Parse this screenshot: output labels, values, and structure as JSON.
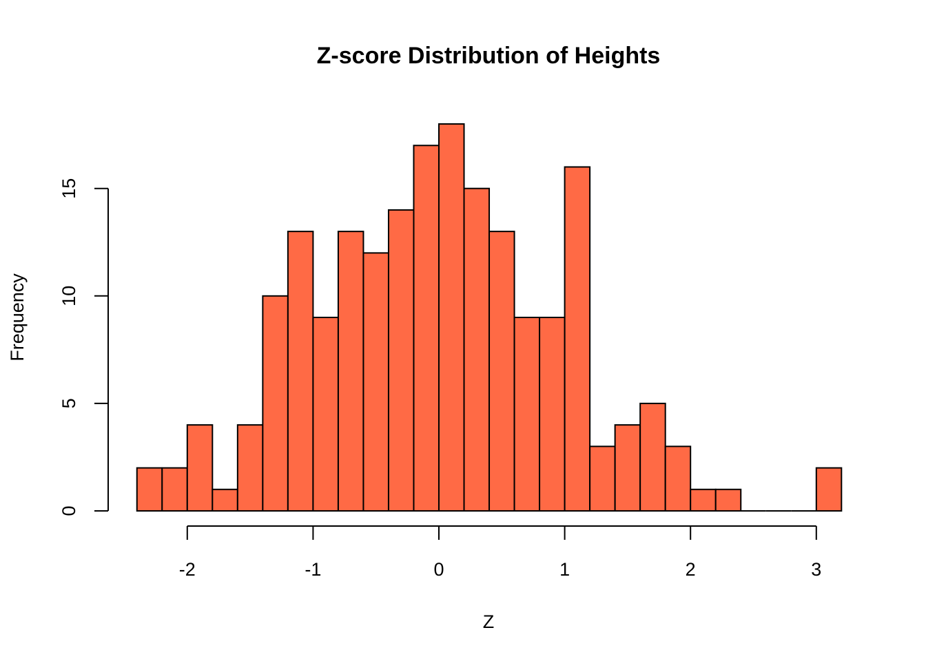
{
  "chart_data": {
    "type": "bar",
    "title": "Z-score Distribution of Heights",
    "xlabel": "Z",
    "ylabel": "Frequency",
    "bin_width": 0.2,
    "bin_start": -2.4,
    "bins": [
      {
        "x0": -2.4,
        "x1": -2.2,
        "count": 2
      },
      {
        "x0": -2.2,
        "x1": -2.0,
        "count": 2
      },
      {
        "x0": -2.0,
        "x1": -1.8,
        "count": 4
      },
      {
        "x0": -1.8,
        "x1": -1.6,
        "count": 1
      },
      {
        "x0": -1.6,
        "x1": -1.4,
        "count": 4
      },
      {
        "x0": -1.4,
        "x1": -1.2,
        "count": 10
      },
      {
        "x0": -1.2,
        "x1": -1.0,
        "count": 13
      },
      {
        "x0": -1.0,
        "x1": -0.8,
        "count": 9
      },
      {
        "x0": -0.8,
        "x1": -0.6,
        "count": 13
      },
      {
        "x0": -0.6,
        "x1": -0.4,
        "count": 12
      },
      {
        "x0": -0.4,
        "x1": -0.2,
        "count": 14
      },
      {
        "x0": -0.2,
        "x1": 0.0,
        "count": 17
      },
      {
        "x0": 0.0,
        "x1": 0.2,
        "count": 18
      },
      {
        "x0": 0.2,
        "x1": 0.4,
        "count": 15
      },
      {
        "x0": 0.4,
        "x1": 0.6,
        "count": 13
      },
      {
        "x0": 0.6,
        "x1": 0.8,
        "count": 9
      },
      {
        "x0": 0.8,
        "x1": 1.0,
        "count": 9
      },
      {
        "x0": 1.0,
        "x1": 1.2,
        "count": 16
      },
      {
        "x0": 1.2,
        "x1": 1.4,
        "count": 3
      },
      {
        "x0": 1.4,
        "x1": 1.6,
        "count": 4
      },
      {
        "x0": 1.6,
        "x1": 1.8,
        "count": 5
      },
      {
        "x0": 1.8,
        "x1": 2.0,
        "count": 3
      },
      {
        "x0": 2.0,
        "x1": 2.2,
        "count": 1
      },
      {
        "x0": 2.2,
        "x1": 2.4,
        "count": 1
      },
      {
        "x0": 2.4,
        "x1": 2.6,
        "count": 0
      },
      {
        "x0": 2.6,
        "x1": 2.8,
        "count": 0
      },
      {
        "x0": 2.8,
        "x1": 3.0,
        "count": 0
      },
      {
        "x0": 3.0,
        "x1": 3.2,
        "count": 2
      }
    ],
    "x_ticks": [
      -2,
      -1,
      0,
      1,
      2,
      3
    ],
    "x_tick_labels": [
      "-2",
      "-1",
      "0",
      "1",
      "2",
      "3"
    ],
    "y_ticks": [
      0,
      5,
      10,
      15
    ],
    "y_tick_labels": [
      "0",
      "5",
      "10",
      "15"
    ],
    "xlim": [
      -2.4,
      3.2
    ],
    "ylim": [
      0,
      18
    ],
    "grid": false,
    "legend": "none",
    "bar_color": "#FF6A45",
    "edge_color": "#000000"
  }
}
